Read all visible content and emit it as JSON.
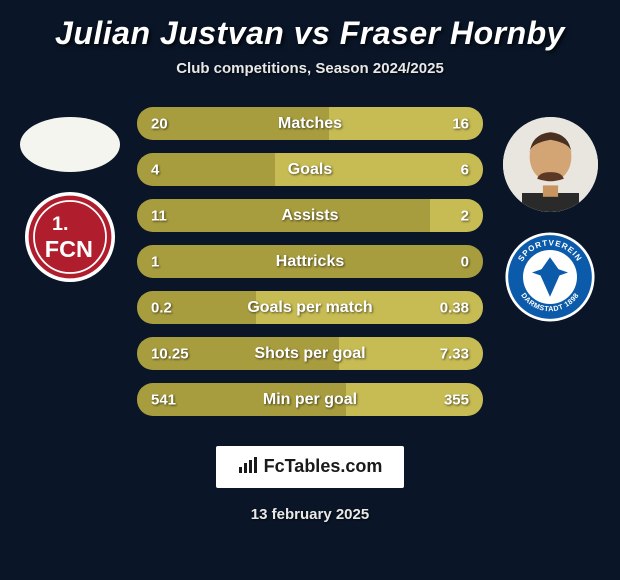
{
  "title": "Julian Justvan vs Fraser Hornby",
  "subtitle": "Club competitions, Season 2024/2025",
  "date": "13 february 2025",
  "brand": "FcTables.com",
  "colors": {
    "page_bg": "#0a1628",
    "bar_left": "#a89d3e",
    "bar_right": "#c7bb54",
    "text": "#ffffff",
    "subtext": "#e8e8e8",
    "badge_bg": "#ffffff",
    "badge_text": "#1a1a1a",
    "club_left_bg": "#b01e2e",
    "club_left_border": "#ffffff",
    "club_right_bg": "#0b5baa",
    "club_right_inner": "#ffffff"
  },
  "chart": {
    "type": "split-bar",
    "rows": [
      {
        "label": "Matches",
        "left": "20",
        "right": "16",
        "left_pct": 55.6,
        "right_pct": 44.4
      },
      {
        "label": "Goals",
        "left": "4",
        "right": "6",
        "left_pct": 40.0,
        "right_pct": 60.0
      },
      {
        "label": "Assists",
        "left": "11",
        "right": "2",
        "left_pct": 84.6,
        "right_pct": 15.4
      },
      {
        "label": "Hattricks",
        "left": "1",
        "right": "0",
        "left_pct": 100.0,
        "right_pct": 0.0
      },
      {
        "label": "Goals per match",
        "left": "0.2",
        "right": "0.38",
        "left_pct": 34.5,
        "right_pct": 65.5
      },
      {
        "label": "Shots per goal",
        "left": "10.25",
        "right": "7.33",
        "left_pct": 58.3,
        "right_pct": 41.7
      },
      {
        "label": "Min per goal",
        "left": "541",
        "right": "355",
        "left_pct": 60.4,
        "right_pct": 39.6
      }
    ]
  },
  "players": {
    "left": {
      "name": "Julian Justvan",
      "club": "1. FCN"
    },
    "right": {
      "name": "Fraser Hornby",
      "club": "SV Darmstadt 1898"
    }
  }
}
